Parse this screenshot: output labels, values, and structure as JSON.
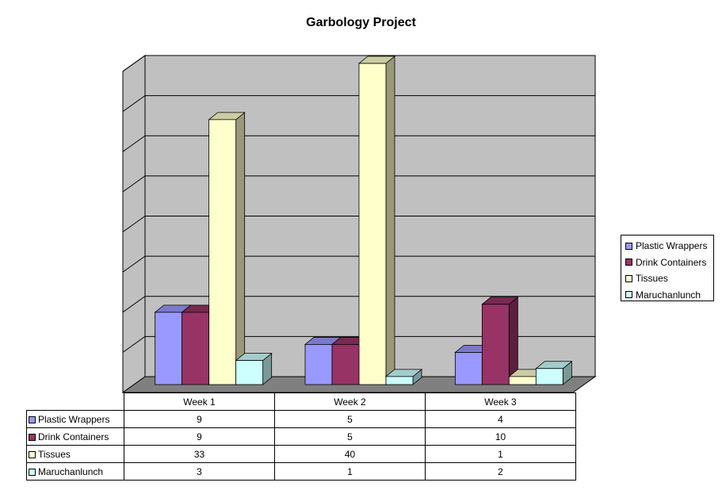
{
  "chart_data": {
    "type": "bar",
    "title": "Garbology Project",
    "categories": [
      "Week 1",
      "Week 2",
      "Week 3"
    ],
    "series": [
      {
        "name": "Plastic Wrappers",
        "values": [
          9,
          5,
          4
        ],
        "color": "#9999FF"
      },
      {
        "name": "Drink Containers",
        "values": [
          9,
          5,
          10
        ],
        "color": "#993366"
      },
      {
        "name": "Tissues",
        "values": [
          33,
          40,
          1
        ],
        "color": "#FFFFCC"
      },
      {
        "name": "Maruchanlunch",
        "values": [
          3,
          1,
          2
        ],
        "color": "#CCFFFF"
      }
    ],
    "ylim": [
      0,
      40
    ],
    "gridlines": true,
    "y_tick_labels_shown": false,
    "legend_position": "right",
    "data_table": true,
    "three_d": true,
    "wall_color": "#C0C0C0",
    "floor_color": "#808080"
  }
}
